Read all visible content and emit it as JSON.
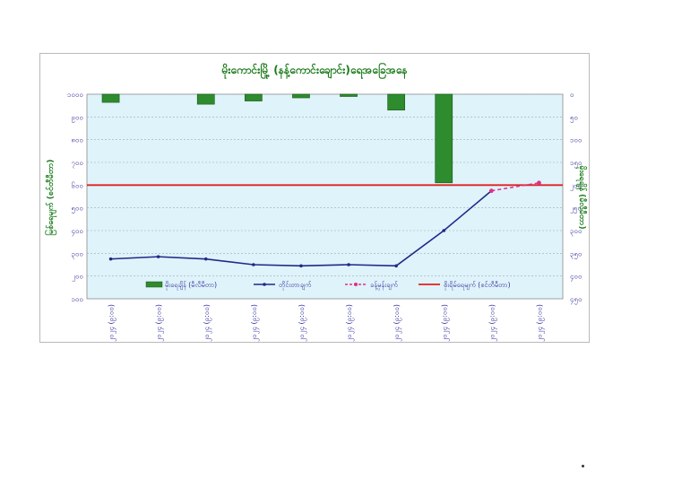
{
  "chart_data": {
    "type": "bar+line",
    "title": "မိုးကောင်းမြို့ (နန့်ကောင်းချောင်း)ရေအခြေအနေ",
    "left_axis": {
      "label": "မြစ်ရေမျက် (စင်တီမီတာ)",
      "ticks": [
        "၁၀၀၀",
        "၉၀၀",
        "၈၀၀",
        "၇၀၀",
        "၆၀၀",
        "၅၀၀",
        "၄၀၀",
        "၃၀၀",
        "၂၀၀",
        "၁၀၀"
      ],
      "range": [
        100,
        1000
      ]
    },
    "right_axis": {
      "label": "မိုးရေချိန် (မီလီမီတာ)",
      "ticks": [
        "၀",
        "၅၀",
        "၁၀၀",
        "၁၅၀",
        "၂၀၀",
        "၂၅၀",
        "၃၀၀",
        "၃၅၀",
        "၄၀၀",
        "၄၅၀"
      ],
      "range": [
        0,
        450
      ],
      "reversed": true
    },
    "categories": [
      "၂၅-၆-၂၀၂၄ (၉:၀၀)",
      "၂၆-၆-၂၀၂၄ (၉:၀၀)",
      "၂၇-၆-၂၀၂၄ (၉:၀၀)",
      "၂၈-၆-၂၀၂၄ (၉:၀၀)",
      "၂၉-၆-၂၀၂၄ (၉:၀၀)",
      "၃၀-၆-၂၀၂၄ (၉:၀၀)",
      "၁-၇-၂၀၂၄ (၉:၀၀)",
      "၂-၇-၂၀၂၄ (၉:၀၀)",
      "၃-၇-၂၀၂၄ (၉:၀၀)",
      "၄-၇-၂၀၂၄ (၉:၀၀)"
    ],
    "rainfall_bars": {
      "name": "မိုးရေချိန် (မီလီမီတာ)",
      "color": "#2e8b2e",
      "values": [
        18,
        0,
        22,
        15,
        8,
        5,
        35,
        195,
        null,
        null
      ]
    },
    "observed_level": {
      "name": "တိုင်းတာချက်",
      "color": "#1f2a8a",
      "values": [
        275,
        285,
        275,
        250,
        245,
        250,
        245,
        400,
        575,
        null
      ]
    },
    "forecast_level": {
      "name": "ခန့်မှန်းချက်",
      "color": "#e0308a",
      "values": [
        null,
        null,
        null,
        null,
        null,
        null,
        null,
        null,
        575,
        610
      ]
    },
    "danger_level": {
      "name": "စိုးရိမ်ရေမျက် (စင်တီမီတာ)",
      "color": "#e02020",
      "value": 600
    },
    "legend_placement": "bottom-inside",
    "grid": "horizontal",
    "plot_background": "#dff3fa"
  }
}
